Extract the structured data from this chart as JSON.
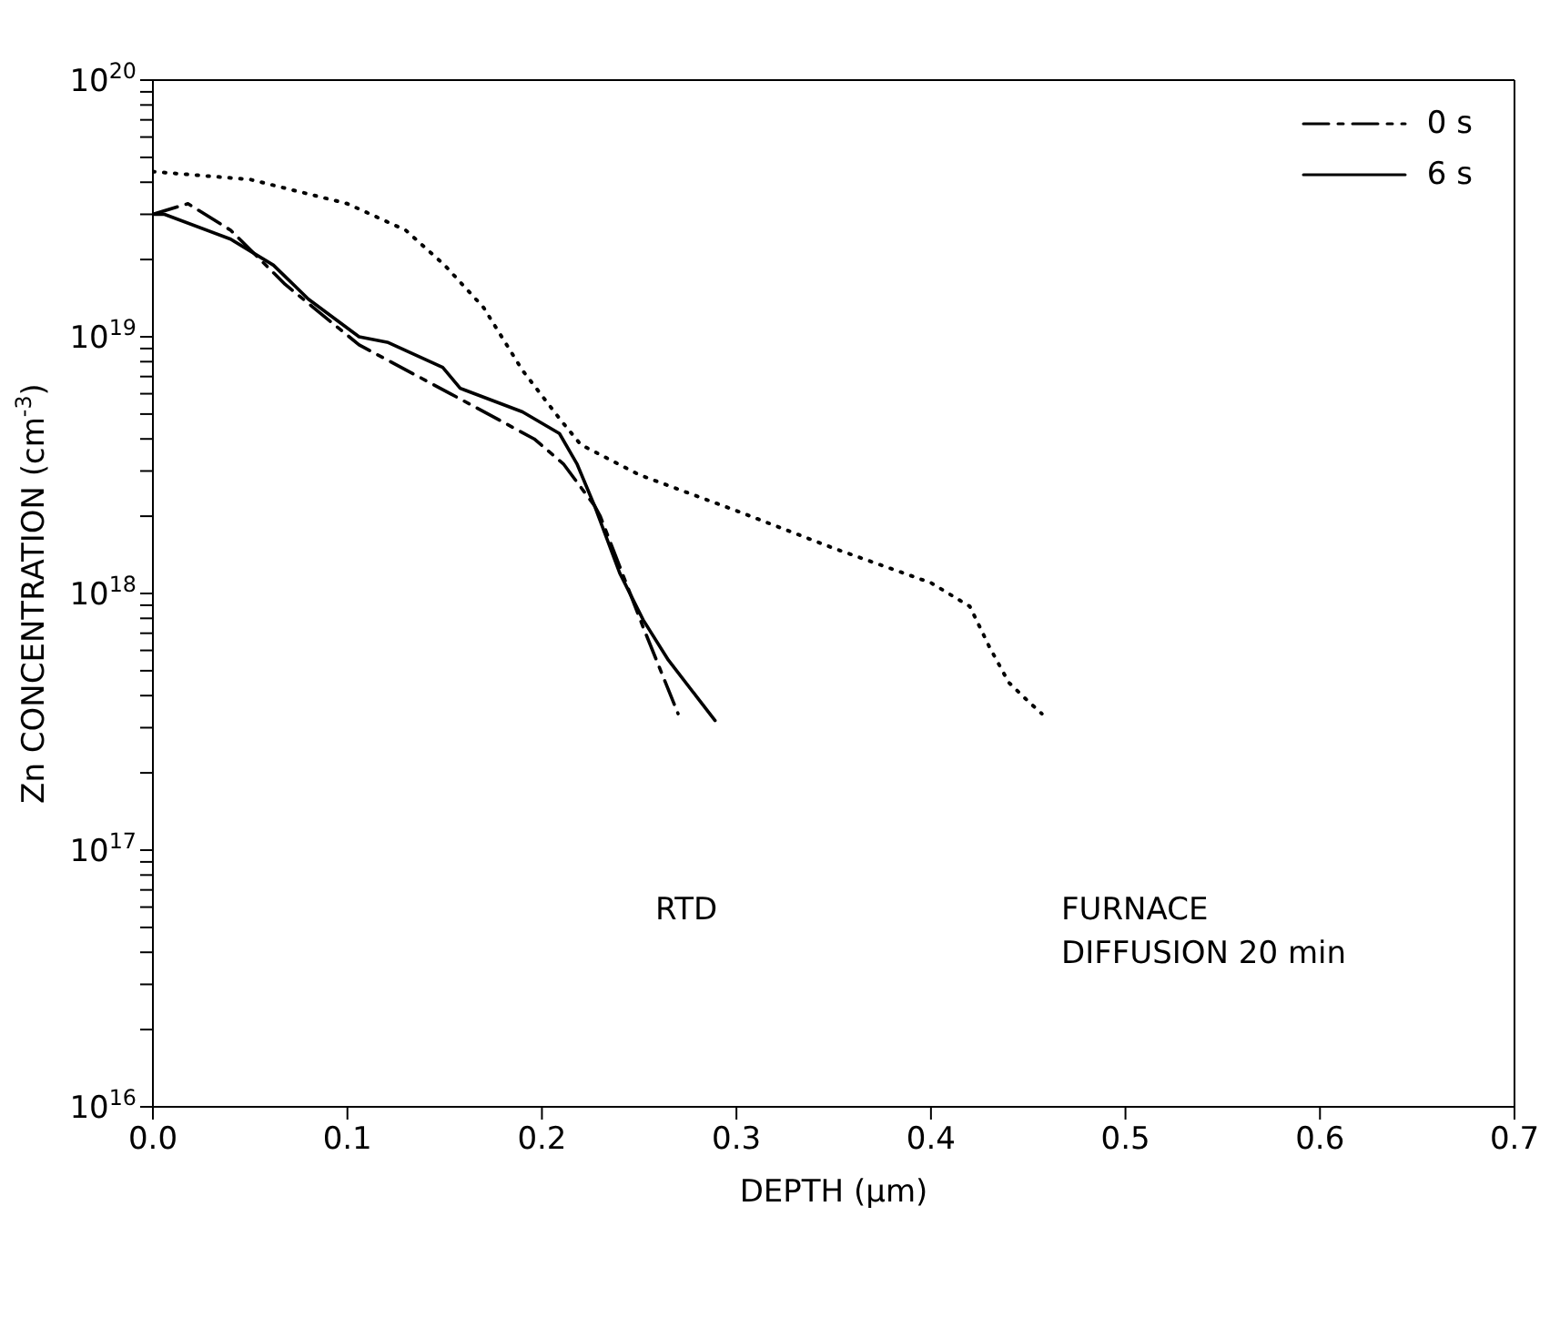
{
  "chart_data": {
    "type": "line",
    "xlabel": "DEPTH (μm)",
    "ylabel": "Zn CONCENTRATION (cm$^{-3}$)",
    "log": "y",
    "legend": "top right",
    "xlim": [
      0,
      0.7
    ],
    "xticks": [
      {
        "value": 0,
        "label": "0.0"
      },
      0.1,
      0.2,
      0.3,
      0.4,
      0.5,
      0.6,
      0.7
    ],
    "ylim": [
      1e+16,
      1e+20
    ],
    "yticks": [
      {
        "value": 1e+16,
        "label": "10$^{16}$"
      },
      {
        "value": 2e+16,
        "label": null
      },
      {
        "value": 3e+16,
        "label": null
      },
      {
        "value": 4e+16,
        "label": null
      },
      {
        "value": 5e+16,
        "label": null
      },
      {
        "value": 6e+16,
        "label": null
      },
      {
        "value": 7e+16,
        "label": null
      },
      {
        "value": 8e+16,
        "label": null
      },
      {
        "value": 9e+16,
        "label": null
      },
      {
        "value": 1e+17,
        "label": "10$^{17}$"
      },
      {
        "value": 2e+17,
        "label": null
      },
      {
        "value": 3e+17,
        "label": null
      },
      {
        "value": 4e+17,
        "label": null
      },
      {
        "value": 5e+17,
        "label": null
      },
      {
        "value": 6e+17,
        "label": null
      },
      {
        "value": 7e+17,
        "label": null
      },
      {
        "value": 8e+17,
        "label": null
      },
      {
        "value": 9e+17,
        "label": null
      },
      {
        "value": 1e+18,
        "label": "10$^{18}$"
      },
      {
        "value": 2e+18,
        "label": null
      },
      {
        "value": 3e+18,
        "label": null
      },
      {
        "value": 4e+18,
        "label": null
      },
      {
        "value": 5e+18,
        "label": null
      },
      {
        "value": 6e+18,
        "label": null
      },
      {
        "value": 7e+18,
        "label": null
      },
      {
        "value": 8e+18,
        "label": null
      },
      {
        "value": 9e+18,
        "label": null
      },
      {
        "value": 1e+19,
        "label": "10$^{19}$"
      },
      {
        "value": 2e+19,
        "label": null
      },
      {
        "value": 3e+19,
        "label": null
      },
      {
        "value": 4e+19,
        "label": null
      },
      {
        "value": 5e+19,
        "label": null
      },
      {
        "value": 6e+19,
        "label": null
      },
      {
        "value": 7e+19,
        "label": null
      },
      {
        "value": 8e+19,
        "label": null
      },
      {
        "value": 9e+19,
        "label": null
      },
      {
        "value": 1e+20,
        "label": "10$^{20}$"
      }
    ],
    "series": [
      {
        "name": "0 s",
        "color": "#000000",
        "line_style": "dashed",
        "x": [
          0,
          0.018,
          0.04,
          0.068,
          0.106,
          0.153,
          0.196,
          0.211,
          0.227,
          0.23,
          0.252,
          0.27
        ],
        "values": [
          3e+19,
          3.3e+19,
          2.6e+19,
          1.6e+19,
          9.3e+18,
          6e+18,
          4e+18,
          3.2e+18,
          2.2e+18,
          2e+18,
          7.4e+17,
          3.4e+17
        ]
      },
      {
        "name": "6 s",
        "color": "#000000",
        "line_style": "solid",
        "x": [
          0,
          0.006,
          0.04,
          0.062,
          0.08,
          0.106,
          0.121,
          0.149,
          0.158,
          0.19,
          0.209,
          0.218,
          0.227,
          0.24,
          0.252,
          0.265,
          0.289
        ],
        "values": [
          3e+19,
          3e+19,
          2.4e+19,
          1.9e+19,
          1.4e+19,
          1e+19,
          9.5e+18,
          7.6e+18,
          6.3e+18,
          5.1e+18,
          4.2e+18,
          3.2e+18,
          2.2e+18,
          1.2e+18,
          7.9e+17,
          5.5e+17,
          3.2e+17
        ]
      },
      {
        "color": "#000000",
        "line_style": "dotted",
        "x": [
          0,
          0.05,
          0.1,
          0.13,
          0.15,
          0.17,
          0.19,
          0.21,
          0.22,
          0.25,
          0.3,
          0.35,
          0.4,
          0.42,
          0.43,
          0.44,
          0.45,
          0.457
        ],
        "values": [
          4.4e+19,
          4.1e+19,
          3.3e+19,
          2.6e+19,
          1.9e+19,
          1.3e+19,
          7.4e+18,
          4.7e+18,
          3.8e+18,
          2.9e+18,
          2.1e+18,
          1.5e+18,
          1.1e+18,
          8.9e+17,
          6.2e+17,
          4.5e+17,
          3.8e+17,
          3.4e+17
        ]
      }
    ],
    "annotations": [
      "RTD",
      "FURNACE\nDIFFUSION 20 min"
    ]
  }
}
